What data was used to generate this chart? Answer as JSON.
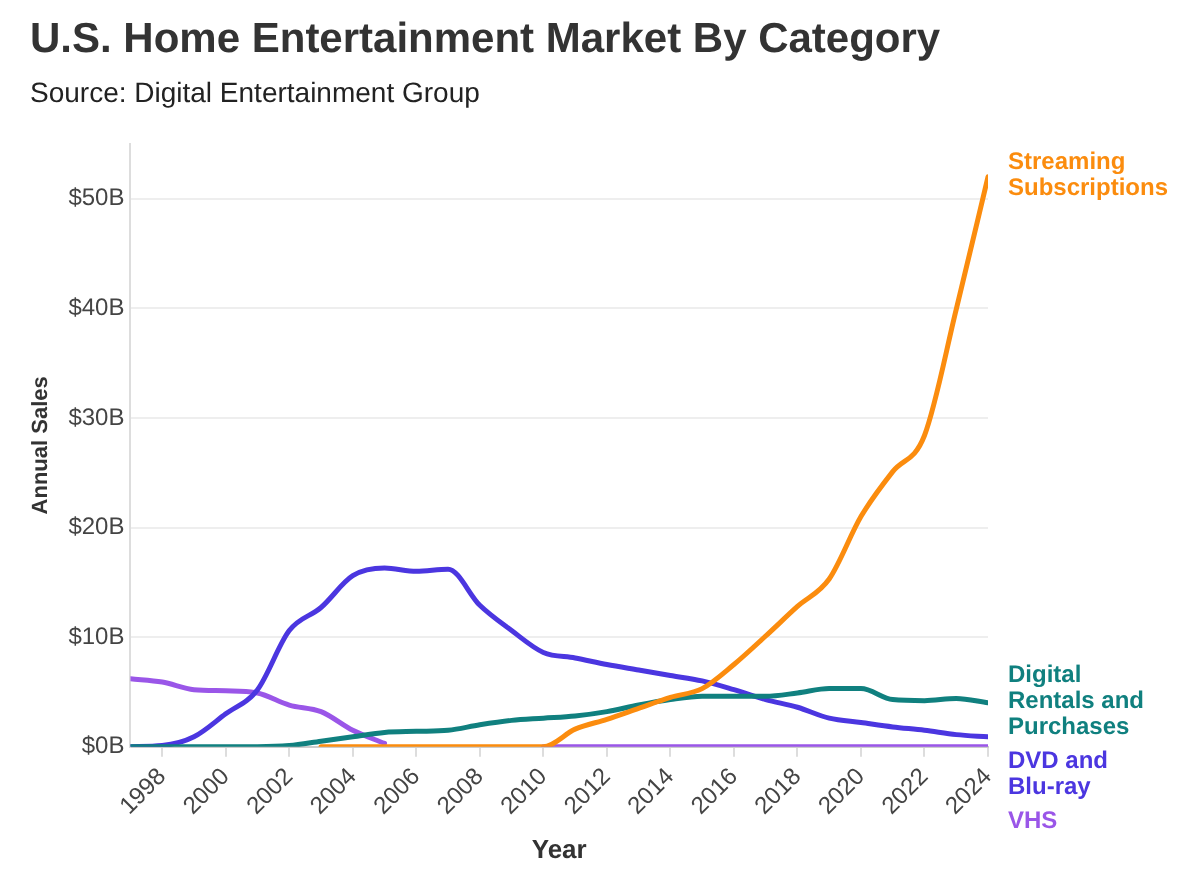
{
  "chart_data": {
    "type": "line",
    "title": "U.S. Home Entertainment Market By Category",
    "subtitle": "Source: Digital Entertainment Group",
    "xlabel": "Year",
    "ylabel": "Annual Sales",
    "x": [
      1997,
      1998,
      1999,
      2000,
      2001,
      2002,
      2003,
      2004,
      2005,
      2006,
      2007,
      2008,
      2009,
      2010,
      2011,
      2012,
      2013,
      2014,
      2015,
      2016,
      2017,
      2018,
      2019,
      2020,
      2021,
      2022,
      2023,
      2024
    ],
    "xlim": [
      1997,
      2024
    ],
    "xticks": [
      1998,
      2000,
      2002,
      2004,
      2006,
      2008,
      2010,
      2012,
      2014,
      2016,
      2018,
      2020,
      2022,
      2024
    ],
    "ylim": [
      0,
      55
    ],
    "yticks": [
      {
        "value": 0,
        "label": "$0B"
      },
      {
        "value": 10,
        "label": "$10B"
      },
      {
        "value": 20,
        "label": "$20B"
      },
      {
        "value": 30,
        "label": "$30B"
      },
      {
        "value": 40,
        "label": "$40B"
      },
      {
        "value": 50,
        "label": "$50B"
      }
    ],
    "grid": "y",
    "legend": false,
    "marker": "none",
    "line_style": "solid",
    "series": [
      {
        "name": "Streaming Subscriptions",
        "color": "#fb8c0e",
        "values": [
          null,
          null,
          null,
          null,
          null,
          null,
          0,
          0,
          0,
          0,
          0,
          0,
          0,
          0,
          1.6,
          2.5,
          3.5,
          4.5,
          5.3,
          7.5,
          10.1,
          12.8,
          15.3,
          21.0,
          25.1,
          28.4,
          39.9,
          52.0
        ]
      },
      {
        "name": "Digital Rentals and Purchases",
        "color": "#10807f",
        "values": [
          0,
          0,
          0,
          0,
          0,
          0.1,
          0.5,
          0.9,
          1.3,
          1.4,
          1.5,
          2.0,
          2.4,
          2.6,
          2.8,
          3.2,
          3.8,
          4.3,
          4.6,
          4.6,
          4.6,
          4.9,
          5.3,
          5.3,
          4.3,
          4.2,
          4.4,
          4.0
        ]
      },
      {
        "name": "DVD and Blu-ray",
        "color": "#4b36e0",
        "values": [
          0,
          0.1,
          0.9,
          3.0,
          5.2,
          10.6,
          12.7,
          15.6,
          16.3,
          16.0,
          16.2,
          12.9,
          10.6,
          8.6,
          8.1,
          7.5,
          7.0,
          6.5,
          6.0,
          5.2,
          4.3,
          3.6,
          2.6,
          2.2,
          1.8,
          1.5,
          1.1,
          0.9
        ]
      },
      {
        "name": "VHS",
        "color": "#9a56e8",
        "values": [
          6.2,
          5.9,
          5.2,
          5.1,
          4.9,
          3.8,
          3.2,
          1.5,
          0.3,
          null,
          null,
          null,
          null,
          0,
          0,
          0,
          0,
          0,
          0,
          0,
          0,
          0,
          0,
          0,
          0,
          0,
          0,
          0
        ]
      }
    ]
  }
}
